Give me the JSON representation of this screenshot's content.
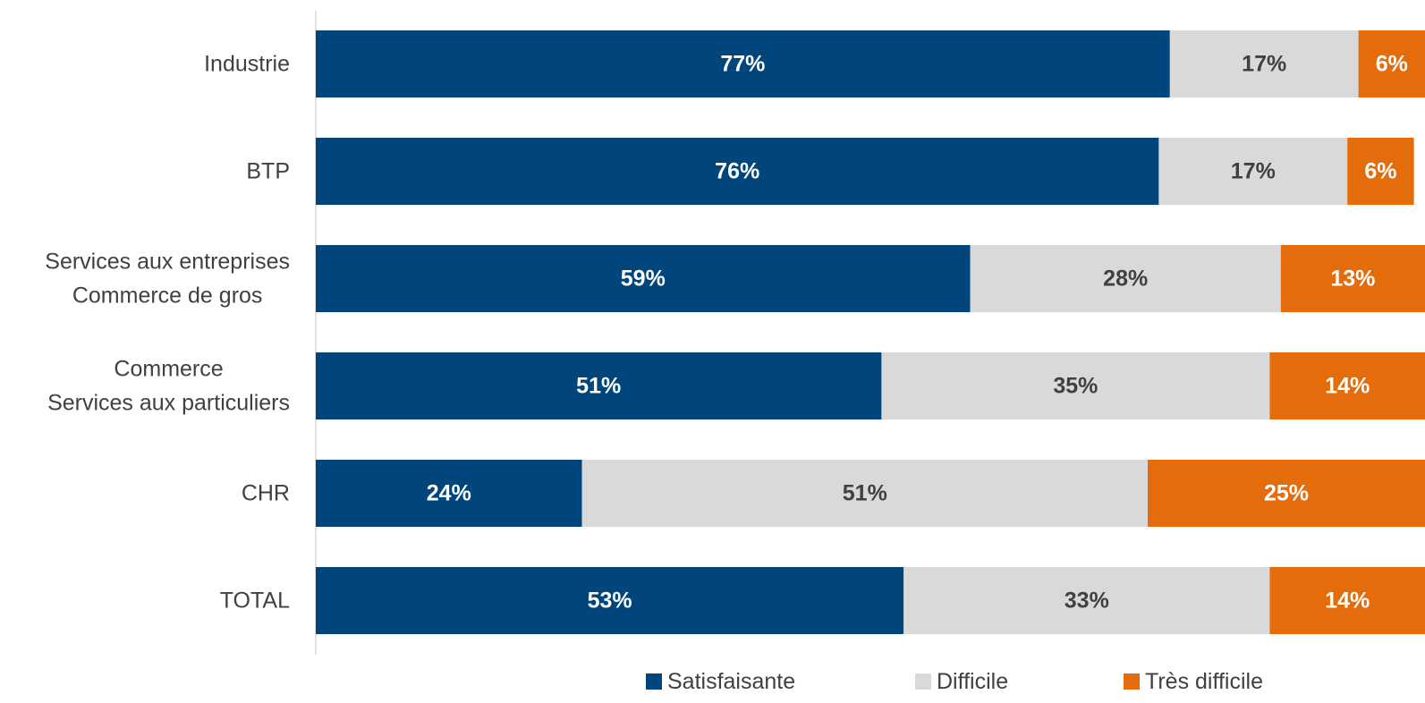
{
  "chart_data": {
    "type": "bar",
    "orientation": "horizontal",
    "stacked": true,
    "categories": [
      [
        "Industrie"
      ],
      [
        "BTP"
      ],
      [
        "Services aux entreprises",
        "Commerce de gros"
      ],
      [
        "Commerce",
        "Services aux particuliers"
      ],
      [
        "CHR"
      ],
      [
        "TOTAL"
      ]
    ],
    "series": [
      {
        "name": "Satisfaisante",
        "color": "#00457c",
        "label_color": "#ffffff",
        "values": [
          77,
          76,
          59,
          51,
          24,
          53
        ],
        "labels": [
          "77%",
          "76%",
          "59%",
          "51%",
          "24%",
          "53%"
        ]
      },
      {
        "name": "Difficile",
        "color": "#d9d9d9",
        "label_color": "#404040",
        "values": [
          17,
          17,
          28,
          35,
          51,
          33
        ],
        "labels": [
          "17%",
          "17%",
          "28%",
          "35%",
          "51%",
          "33%"
        ]
      },
      {
        "name": "Très difficile",
        "color": "#e46c0a",
        "label_color": "#ffffff",
        "values": [
          6,
          6,
          13,
          14,
          25,
          14
        ],
        "labels": [
          "6%",
          "6%",
          "13%",
          "14%",
          "25%",
          "14%"
        ]
      }
    ],
    "xlim": [
      0,
      100
    ],
    "grid": false,
    "legend_position": "bottom"
  }
}
